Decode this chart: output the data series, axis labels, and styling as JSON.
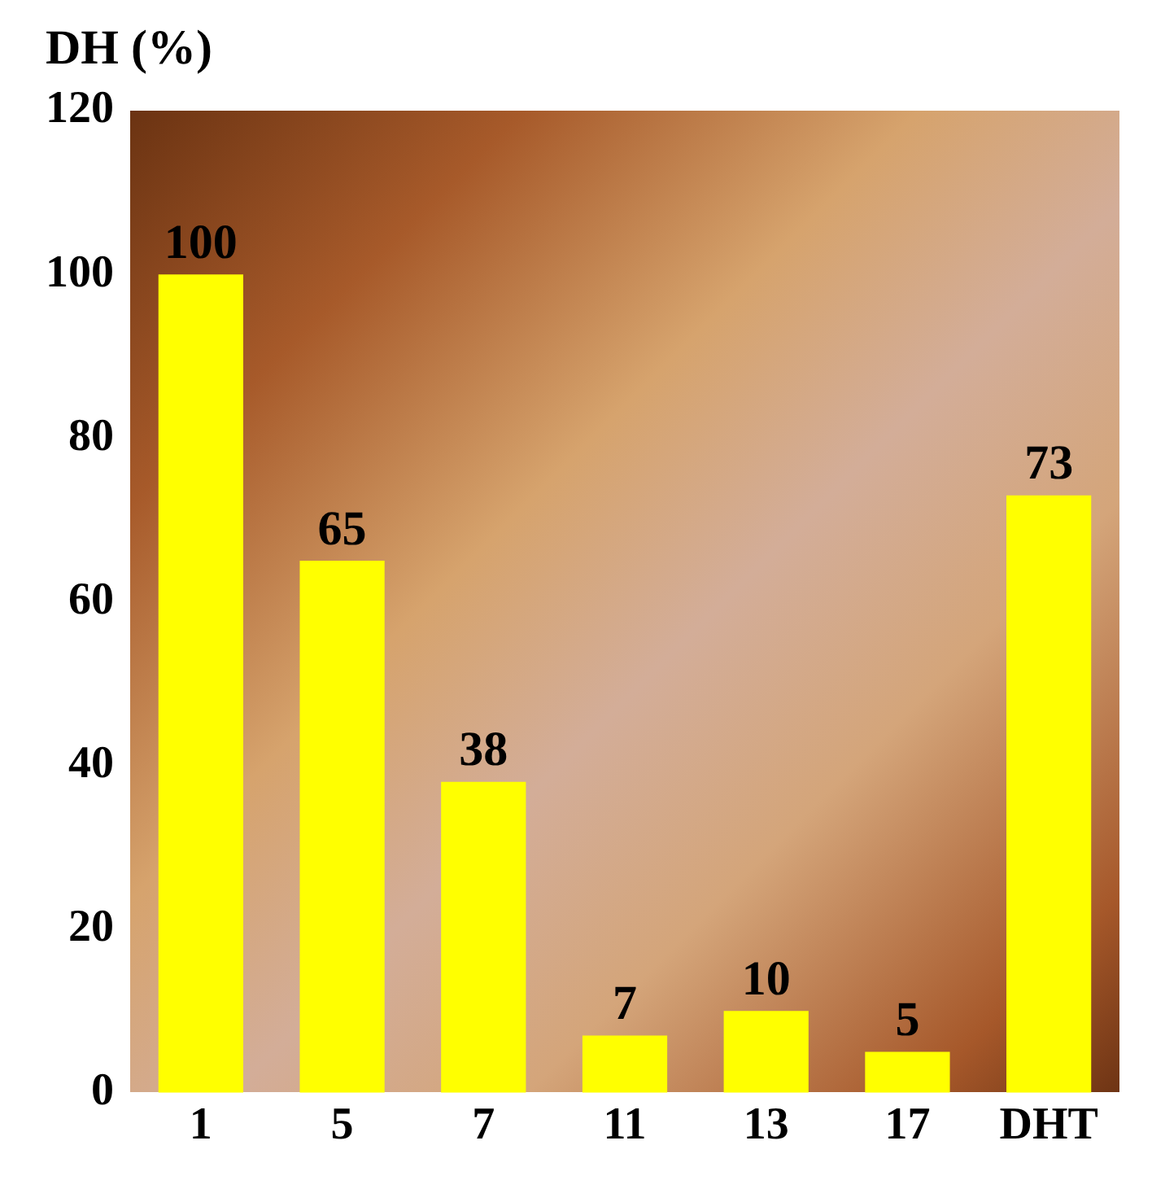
{
  "chart_data": {
    "type": "bar",
    "ylabel": "DH (%)",
    "categories": [
      "1",
      "5",
      "7",
      "11",
      "13",
      "17",
      "DHT"
    ],
    "values": [
      100,
      65,
      38,
      7,
      10,
      5,
      73
    ],
    "color": "#ffff00",
    "ylim": [
      0,
      120
    ],
    "yticks": [
      0,
      20,
      40,
      60,
      80,
      100,
      120
    ],
    "grid": false,
    "legend": false,
    "data_labels": true
  }
}
